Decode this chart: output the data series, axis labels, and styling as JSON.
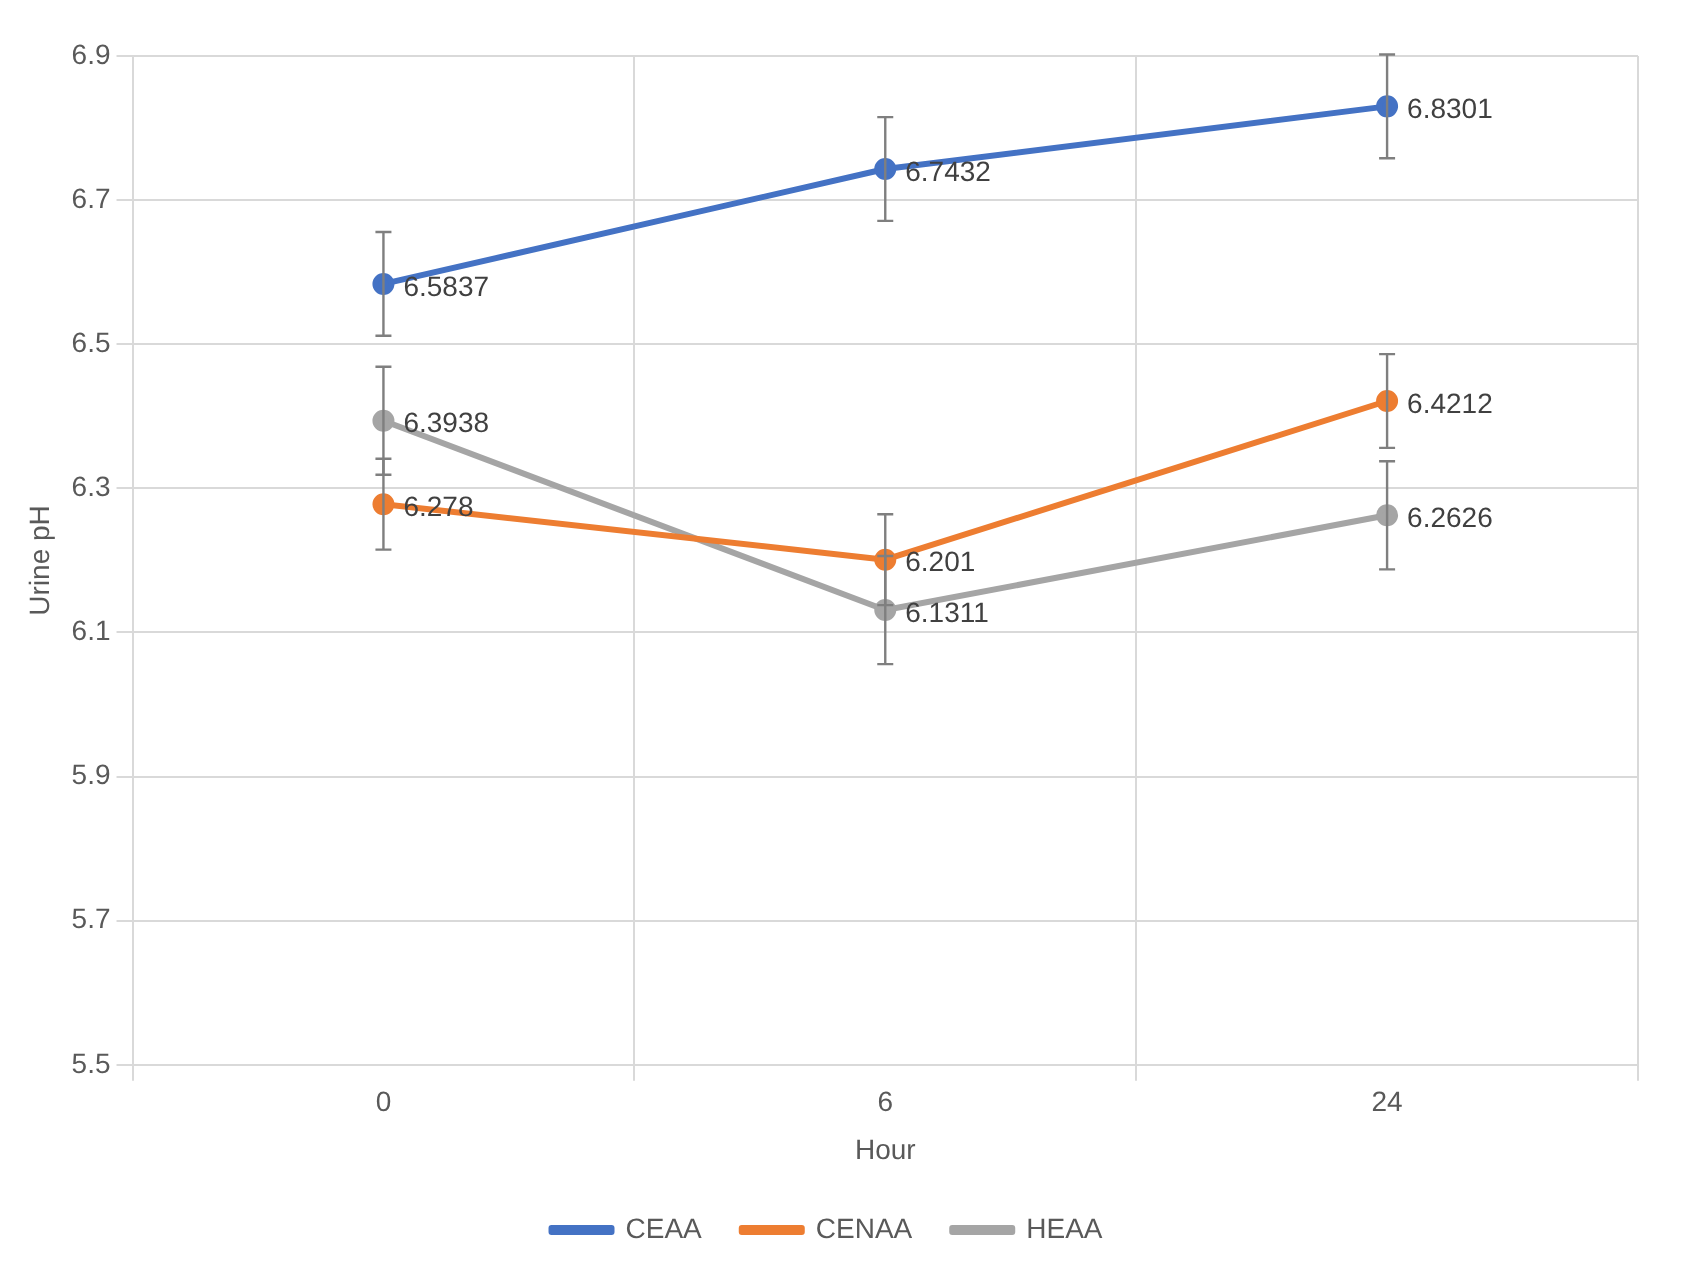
{
  "chart_data": {
    "type": "line",
    "xlabel": "Hour",
    "ylabel": "Urine pH",
    "categories": [
      "0",
      "6",
      "24"
    ],
    "series": [
      {
        "name": "CEAA",
        "color": "#4472c4",
        "values": [
          6.5837,
          6.7432,
          6.8301
        ],
        "errors": [
          0.072,
          0.072,
          0.072
        ]
      },
      {
        "name": "CENAA",
        "color": "#ed7d31",
        "values": [
          6.278,
          6.201,
          6.4212
        ],
        "errors": [
          0.063,
          0.063,
          0.065
        ]
      },
      {
        "name": "HEAA",
        "color": "#a5a5a5",
        "values": [
          6.3938,
          6.1311,
          6.2626
        ],
        "errors": [
          0.075,
          0.075,
          0.075
        ]
      }
    ],
    "ylim": [
      5.5,
      6.9
    ],
    "yticks": [
      5.5,
      5.7,
      5.9,
      6.1,
      6.3,
      6.5,
      6.7,
      6.9
    ],
    "grid": true,
    "legend": "bottom",
    "marker": "circle",
    "line_style": "solid",
    "data_labels": true
  }
}
